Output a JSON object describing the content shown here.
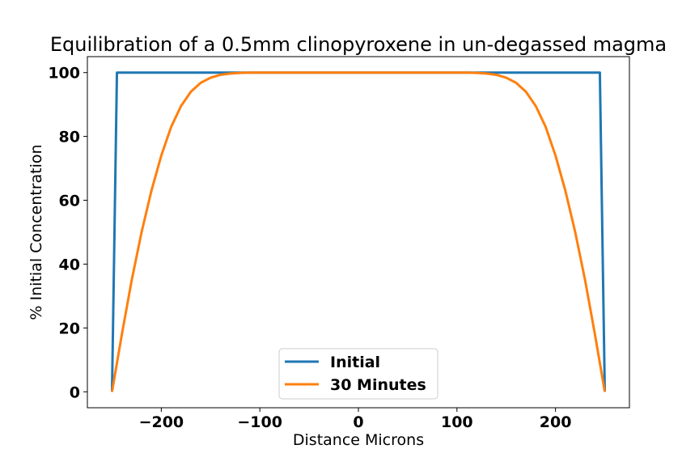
{
  "chart_data": {
    "type": "line",
    "title": "Equilibration of a 0.5mm clinopyroxene in un-degassed magma",
    "xlabel": "Distance Microns",
    "ylabel": "% Initial Concentration",
    "xlim": [
      -275,
      275
    ],
    "ylim": [
      -5,
      105
    ],
    "xticks": [
      -200,
      -100,
      0,
      100,
      200
    ],
    "xtick_labels": [
      "−200",
      "−100",
      "0",
      "100",
      "200"
    ],
    "yticks": [
      0,
      20,
      40,
      60,
      80,
      100
    ],
    "ytick_labels": [
      "0",
      "20",
      "40",
      "60",
      "80",
      "100"
    ],
    "grid": false,
    "legend_position": "lower center",
    "series": [
      {
        "name": "Initial",
        "color": "#1f77b4",
        "x": [
          -250,
          -245,
          245,
          250
        ],
        "y": [
          0,
          100,
          100,
          0
        ]
      },
      {
        "name": "30 Minutes",
        "color": "#ff7f0e",
        "x": [
          -250,
          -240,
          -230,
          -220,
          -210,
          -200,
          -190,
          -180,
          -170,
          -160,
          -150,
          -140,
          -130,
          -120,
          -110,
          -100,
          0,
          100,
          110,
          120,
          130,
          140,
          150,
          160,
          170,
          180,
          190,
          200,
          210,
          220,
          230,
          240,
          250
        ],
        "y": [
          0,
          18,
          35,
          50,
          63,
          74,
          83,
          89.5,
          94,
          96.8,
          98.4,
          99.3,
          99.7,
          99.9,
          100,
          100,
          100,
          100,
          100,
          99.9,
          99.7,
          99.3,
          98.4,
          96.8,
          94,
          89.5,
          83,
          74,
          63,
          50,
          35,
          18,
          0
        ]
      }
    ]
  }
}
